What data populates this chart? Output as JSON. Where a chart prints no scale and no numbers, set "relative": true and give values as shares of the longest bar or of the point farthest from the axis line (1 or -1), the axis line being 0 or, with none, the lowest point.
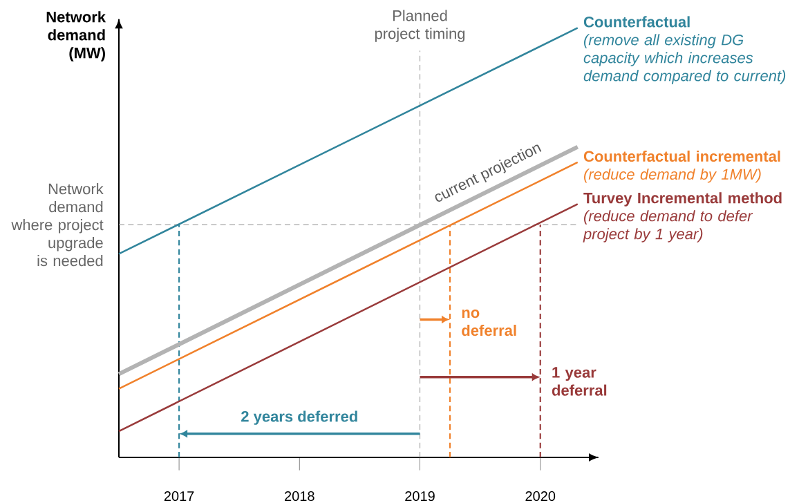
{
  "chart_data": {
    "type": "line",
    "relative": true,
    "ylabel": "Network demand (MW)",
    "xlim": [
      2016.5,
      2020.48
    ],
    "xticks": [
      2017,
      2018,
      2019,
      2020
    ],
    "x": [
      2016.5,
      2020.31
    ],
    "series": [
      {
        "name": "Counterfactual",
        "color": "#31859c",
        "values": [
          0.474,
          1
        ]
      },
      {
        "name": "current projection",
        "color": "#b3b3b3",
        "values": [
          0.194,
          0.723
        ]
      },
      {
        "name": "Counterfactual incremental",
        "color": "#f0812b",
        "values": [
          0.16,
          0.687
        ]
      },
      {
        "name": "Turvey Incremental method",
        "color": "#993a3a",
        "values": [
          0.061,
          0.59
        ]
      }
    ],
    "ref_lines": [
      {
        "axis": "y",
        "value": 0.542,
        "label": "Network demand where project upgrade is needed",
        "color": "#a6a6a6",
        "line_style": "dashed"
      },
      {
        "axis": "x",
        "value": 2019,
        "label": "Planned project timing",
        "color": "#a6a6a6",
        "line_style": "dashed"
      },
      {
        "axis": "x",
        "value": 2017,
        "color": "#31859c",
        "line_style": "dashed"
      },
      {
        "axis": "x",
        "value": 2019.25,
        "color": "#f0812b",
        "line_style": "dashed"
      },
      {
        "axis": "x",
        "value": 2020,
        "color": "#993a3a",
        "line_style": "dashed"
      }
    ],
    "annotations": [
      "(remove all existing DG capacity which increases demand compared to current)",
      "(reduce demand by 1MW)",
      "(reduce demand to defer project by 1 year)",
      "2 years deferred",
      {
        "text": "no deferral",
        "x": 2019.25,
        "y": 0.321
      },
      {
        "text": "1 year deferral",
        "x": 2020,
        "y": 0.187
      }
    ],
    "marker": "none",
    "line_style": "solid",
    "grid": false
  }
}
